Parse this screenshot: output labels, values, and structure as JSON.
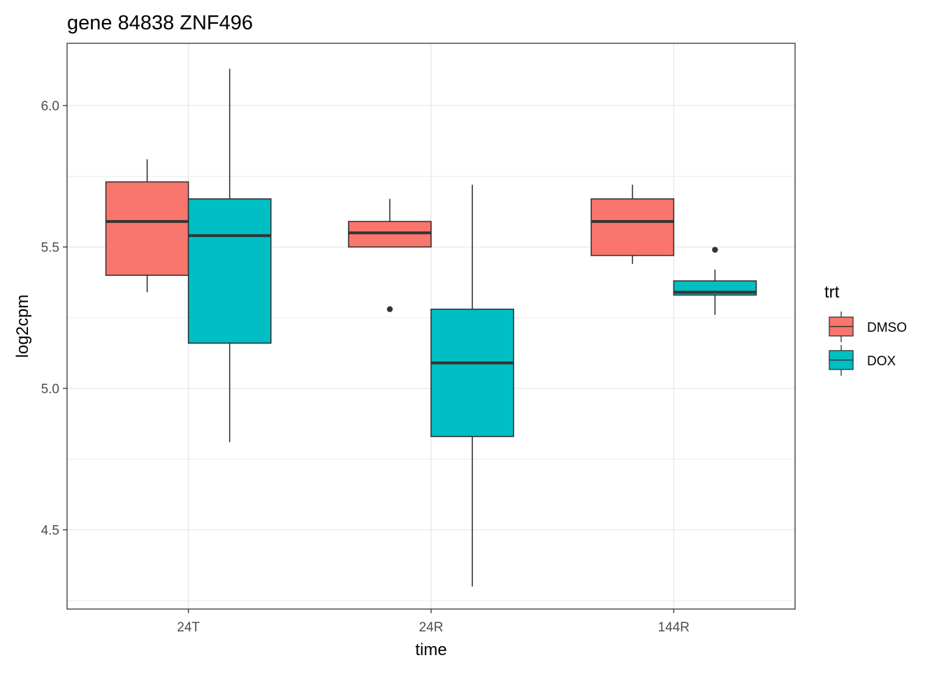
{
  "chart_data": {
    "type": "boxplot",
    "title": "gene 84838 ZNF496",
    "xlabel": "time",
    "ylabel": "log2cpm",
    "categories": [
      "24T",
      "24R",
      "144R"
    ],
    "ylim": [
      4.22,
      6.22
    ],
    "y_ticks": [
      4.5,
      5.0,
      5.5,
      6.0
    ],
    "y_tick_labels": [
      "4.5",
      "5.0",
      "5.5",
      "6.0"
    ],
    "grid": true,
    "legend": {
      "title": "trt",
      "position": "right"
    },
    "series": [
      {
        "name": "DMSO",
        "color": "#F8766D",
        "boxes": [
          {
            "category": "24T",
            "whisker_low": 5.34,
            "q1": 5.4,
            "median": 5.59,
            "q3": 5.73,
            "whisker_high": 5.81,
            "outliers": []
          },
          {
            "category": "24R",
            "whisker_low": 5.5,
            "q1": 5.5,
            "median": 5.55,
            "q3": 5.59,
            "whisker_high": 5.67,
            "outliers": [
              5.28
            ]
          },
          {
            "category": "144R",
            "whisker_low": 5.44,
            "q1": 5.47,
            "median": 5.59,
            "q3": 5.67,
            "whisker_high": 5.72,
            "outliers": []
          }
        ]
      },
      {
        "name": "DOX",
        "color": "#00BFC4",
        "boxes": [
          {
            "category": "24T",
            "whisker_low": 4.81,
            "q1": 5.16,
            "median": 5.54,
            "q3": 5.67,
            "whisker_high": 6.13,
            "outliers": []
          },
          {
            "category": "24R",
            "whisker_low": 4.3,
            "q1": 4.83,
            "median": 5.09,
            "q3": 5.28,
            "whisker_high": 5.72,
            "outliers": []
          },
          {
            "category": "144R",
            "whisker_low": 5.26,
            "q1": 5.33,
            "median": 5.34,
            "q3": 5.38,
            "whisker_high": 5.42,
            "outliers": [
              5.49
            ]
          }
        ]
      }
    ]
  }
}
